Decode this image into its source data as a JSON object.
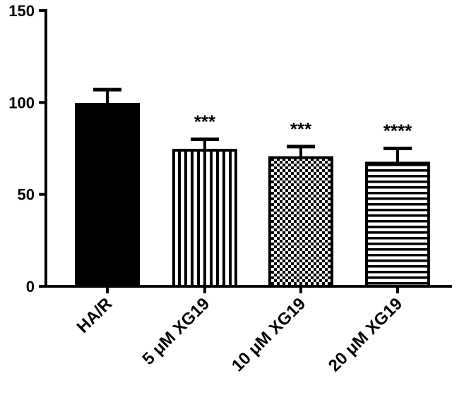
{
  "chart_data": {
    "type": "bar",
    "title": "",
    "xlabel": "",
    "ylabel": "",
    "ylim": [
      0,
      150
    ],
    "yticks": [
      0,
      50,
      100,
      150
    ],
    "grid": false,
    "categories": [
      "HA/R",
      "5 μM XG19",
      "10 μM XG19",
      "20 μM XG19"
    ],
    "values": [
      99,
      74,
      70,
      67
    ],
    "errors": [
      8,
      6,
      6,
      8
    ],
    "significance": [
      "",
      "***",
      "***",
      "****"
    ],
    "patterns": [
      "solid",
      "vertical-stripes",
      "checkerboard",
      "horizontal-stripes"
    ],
    "bar_color": "#000000",
    "background_color": "#ffffff"
  }
}
